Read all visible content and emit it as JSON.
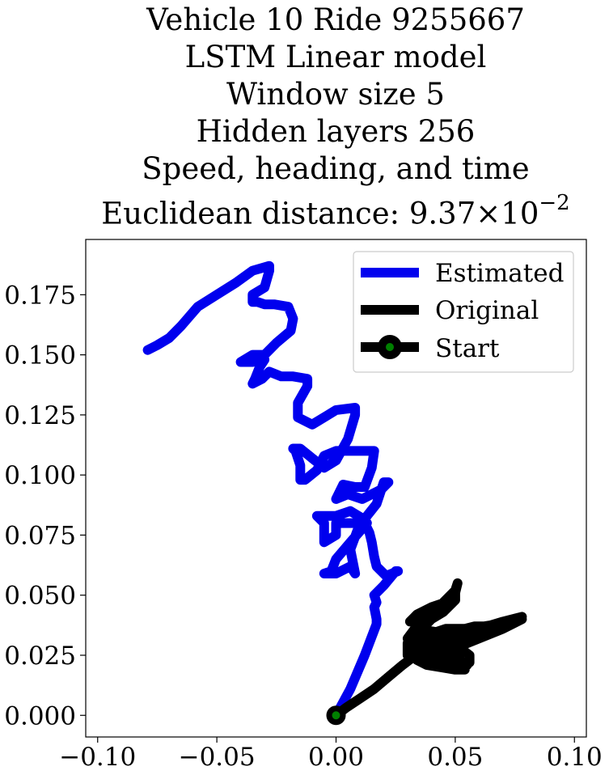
{
  "chart_data": {
    "type": "line",
    "title_lines": [
      "Vehicle 10 Ride 9255667",
      "LSTM Linear model",
      "Window size 5",
      "Hidden layers 256",
      "Speed, heading, and time"
    ],
    "title_distance_prefix": "Euclidean distance: ",
    "title_distance_mantissa": "9.37",
    "title_distance_times": "×",
    "title_distance_base": "10",
    "title_distance_exponent": "−2",
    "xlim": [
      -0.105,
      0.105
    ],
    "ylim": [
      -0.009,
      0.198
    ],
    "x_ticks": [
      -0.1,
      -0.05,
      0.0,
      0.05,
      0.1
    ],
    "x_tick_labels": [
      "−0.10",
      "−0.05",
      "0.00",
      "0.05",
      "0.10"
    ],
    "y_ticks": [
      0.0,
      0.025,
      0.05,
      0.075,
      0.1,
      0.125,
      0.15,
      0.175
    ],
    "y_tick_labels": [
      "0.000",
      "0.025",
      "0.050",
      "0.075",
      "0.100",
      "0.125",
      "0.150",
      "0.175"
    ],
    "legend_position": "upper-right",
    "series": [
      {
        "name": "Estimated",
        "color": "#0000ee",
        "points": [
          [
            0.0,
            0.0
          ],
          [
            0.006,
            0.011
          ],
          [
            0.012,
            0.025
          ],
          [
            0.017,
            0.038
          ],
          [
            0.017,
            0.04
          ],
          [
            0.016,
            0.045
          ],
          [
            0.017,
            0.047
          ],
          [
            0.016,
            0.05
          ],
          [
            0.02,
            0.054
          ],
          [
            0.025,
            0.06
          ],
          [
            0.026,
            0.06
          ],
          [
            0.021,
            0.058
          ],
          [
            0.017,
            0.062
          ],
          [
            0.016,
            0.066
          ],
          [
            0.015,
            0.072
          ],
          [
            0.014,
            0.076
          ],
          [
            0.012,
            0.08
          ],
          [
            0.006,
            0.08
          ],
          [
            0.0,
            0.08
          ],
          [
            0.0,
            0.075
          ],
          [
            -0.005,
            0.072
          ],
          [
            -0.005,
            0.08
          ],
          [
            -0.008,
            0.083
          ],
          [
            0.0,
            0.083
          ],
          [
            0.006,
            0.085
          ],
          [
            0.011,
            0.082
          ],
          [
            0.013,
            0.08
          ],
          [
            0.006,
            0.072
          ],
          [
            0.0,
            0.065
          ],
          [
            -0.002,
            0.06
          ],
          [
            -0.005,
            0.059
          ],
          [
            0.0,
            0.059
          ],
          [
            0.006,
            0.062
          ],
          [
            0.008,
            0.059
          ],
          [
            0.006,
            0.069
          ],
          [
            0.009,
            0.077
          ],
          [
            0.013,
            0.083
          ],
          [
            0.017,
            0.088
          ],
          [
            0.02,
            0.097
          ],
          [
            0.022,
            0.097
          ],
          [
            0.019,
            0.094
          ],
          [
            0.011,
            0.09
          ],
          [
            0.005,
            0.092
          ],
          [
            0.0,
            0.09
          ],
          [
            0.003,
            0.096
          ],
          [
            0.008,
            0.095
          ],
          [
            0.012,
            0.095
          ],
          [
            0.015,
            0.103
          ],
          [
            0.016,
            0.11
          ],
          [
            0.008,
            0.11
          ],
          [
            0.0,
            0.11
          ],
          [
            -0.005,
            0.108
          ],
          [
            -0.008,
            0.102
          ],
          [
            -0.013,
            0.098
          ],
          [
            -0.015,
            0.098
          ],
          [
            -0.015,
            0.104
          ],
          [
            -0.017,
            0.11
          ],
          [
            -0.018,
            0.111
          ],
          [
            -0.015,
            0.111
          ],
          [
            -0.01,
            0.107
          ],
          [
            -0.005,
            0.103
          ],
          [
            0.0,
            0.106
          ],
          [
            0.005,
            0.115
          ],
          [
            0.008,
            0.125
          ],
          [
            0.008,
            0.128
          ],
          [
            0.0,
            0.127
          ],
          [
            -0.005,
            0.124
          ],
          [
            -0.01,
            0.121
          ],
          [
            -0.016,
            0.124
          ],
          [
            -0.016,
            0.13
          ],
          [
            -0.012,
            0.137
          ],
          [
            -0.012,
            0.14
          ],
          [
            -0.018,
            0.141
          ],
          [
            -0.02,
            0.141
          ],
          [
            -0.023,
            0.141
          ],
          [
            -0.028,
            0.143
          ],
          [
            -0.031,
            0.14
          ],
          [
            -0.035,
            0.138
          ],
          [
            -0.034,
            0.14
          ],
          [
            -0.032,
            0.145
          ],
          [
            -0.03,
            0.148
          ],
          [
            -0.035,
            0.147
          ],
          [
            -0.04,
            0.147
          ],
          [
            -0.035,
            0.15
          ],
          [
            -0.03,
            0.15
          ],
          [
            -0.025,
            0.155
          ],
          [
            -0.019,
            0.16
          ],
          [
            -0.018,
            0.165
          ],
          [
            -0.02,
            0.17
          ],
          [
            -0.026,
            0.171
          ],
          [
            -0.03,
            0.171
          ],
          [
            -0.033,
            0.172
          ],
          [
            -0.035,
            0.172
          ],
          [
            -0.035,
            0.175
          ],
          [
            -0.03,
            0.178
          ],
          [
            -0.028,
            0.185
          ],
          [
            -0.028,
            0.187
          ],
          [
            -0.035,
            0.185
          ],
          [
            -0.042,
            0.18
          ],
          [
            -0.05,
            0.175
          ],
          [
            -0.058,
            0.17
          ],
          [
            -0.065,
            0.162
          ],
          [
            -0.07,
            0.157
          ],
          [
            -0.075,
            0.154
          ],
          [
            -0.079,
            0.152
          ]
        ]
      },
      {
        "name": "Original",
        "color": "#000000",
        "points": [
          [
            0.0,
            0.0
          ],
          [
            0.004,
            0.003
          ],
          [
            0.01,
            0.007
          ],
          [
            0.016,
            0.011
          ],
          [
            0.022,
            0.016
          ],
          [
            0.028,
            0.021
          ],
          [
            0.032,
            0.024
          ],
          [
            0.036,
            0.028
          ],
          [
            0.04,
            0.03
          ],
          [
            0.046,
            0.033
          ],
          [
            0.051,
            0.032
          ],
          [
            0.045,
            0.028
          ],
          [
            0.037,
            0.026
          ],
          [
            0.032,
            0.026
          ],
          [
            0.036,
            0.031
          ],
          [
            0.042,
            0.034
          ],
          [
            0.047,
            0.036
          ],
          [
            0.044,
            0.033
          ],
          [
            0.038,
            0.03
          ],
          [
            0.034,
            0.028
          ],
          [
            0.03,
            0.025
          ],
          [
            0.03,
            0.03
          ],
          [
            0.034,
            0.034
          ],
          [
            0.04,
            0.035
          ],
          [
            0.046,
            0.034
          ],
          [
            0.052,
            0.034
          ],
          [
            0.057,
            0.032
          ],
          [
            0.06,
            0.033
          ],
          [
            0.058,
            0.036
          ],
          [
            0.052,
            0.036
          ],
          [
            0.046,
            0.036
          ],
          [
            0.04,
            0.034
          ],
          [
            0.034,
            0.032
          ],
          [
            0.03,
            0.032
          ],
          [
            0.033,
            0.036
          ],
          [
            0.038,
            0.038
          ],
          [
            0.04,
            0.04
          ],
          [
            0.045,
            0.043
          ],
          [
            0.05,
            0.048
          ],
          [
            0.05,
            0.051
          ],
          [
            0.051,
            0.055
          ],
          [
            0.05,
            0.052
          ],
          [
            0.046,
            0.048
          ],
          [
            0.042,
            0.044
          ],
          [
            0.038,
            0.04
          ],
          [
            0.034,
            0.039
          ],
          [
            0.031,
            0.039
          ],
          [
            0.034,
            0.042
          ],
          [
            0.04,
            0.045
          ],
          [
            0.046,
            0.047
          ],
          [
            0.05,
            0.048
          ],
          [
            0.046,
            0.044
          ],
          [
            0.04,
            0.04
          ],
          [
            0.036,
            0.037
          ],
          [
            0.034,
            0.034
          ],
          [
            0.04,
            0.032
          ],
          [
            0.05,
            0.034
          ],
          [
            0.06,
            0.036
          ],
          [
            0.07,
            0.039
          ],
          [
            0.078,
            0.041
          ],
          [
            0.07,
            0.037
          ],
          [
            0.06,
            0.033
          ],
          [
            0.05,
            0.03
          ],
          [
            0.04,
            0.025
          ],
          [
            0.034,
            0.024
          ],
          [
            0.03,
            0.026
          ],
          [
            0.034,
            0.028
          ],
          [
            0.04,
            0.028
          ],
          [
            0.046,
            0.026
          ],
          [
            0.052,
            0.022
          ],
          [
            0.054,
            0.019
          ],
          [
            0.05,
            0.019
          ],
          [
            0.044,
            0.02
          ],
          [
            0.038,
            0.021
          ],
          [
            0.034,
            0.023
          ],
          [
            0.038,
            0.026
          ],
          [
            0.044,
            0.03
          ],
          [
            0.048,
            0.033
          ],
          [
            0.05,
            0.036
          ],
          [
            0.054,
            0.036
          ],
          [
            0.058,
            0.037
          ],
          [
            0.062,
            0.037
          ],
          [
            0.068,
            0.038
          ],
          [
            0.075,
            0.039
          ],
          [
            0.078,
            0.04
          ],
          [
            0.07,
            0.036
          ],
          [
            0.06,
            0.032
          ],
          [
            0.05,
            0.028
          ],
          [
            0.044,
            0.026
          ],
          [
            0.04,
            0.025
          ],
          [
            0.045,
            0.023
          ],
          [
            0.05,
            0.022
          ],
          [
            0.055,
            0.021
          ],
          [
            0.05,
            0.02
          ],
          [
            0.045,
            0.022
          ],
          [
            0.04,
            0.024
          ],
          [
            0.04,
            0.028
          ],
          [
            0.044,
            0.03
          ],
          [
            0.048,
            0.03
          ],
          [
            0.052,
            0.028
          ],
          [
            0.056,
            0.025
          ],
          [
            0.056,
            0.022
          ],
          [
            0.052,
            0.022
          ],
          [
            0.048,
            0.024
          ],
          [
            0.048,
            0.026
          ],
          [
            0.052,
            0.025
          ],
          [
            0.05,
            0.024
          ],
          [
            0.05,
            0.026
          ]
        ]
      }
    ],
    "start": {
      "name": "Start",
      "point": [
        0.0,
        0.0
      ],
      "edge_color": "#000000",
      "face_color": "#008000"
    },
    "legend_line_colors": {
      "estimated": "#0000ee",
      "original": "#000000",
      "start": "#000000"
    }
  }
}
